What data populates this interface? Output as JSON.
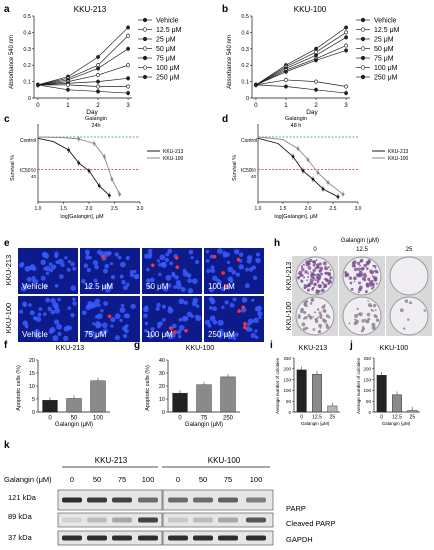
{
  "panels": {
    "a": {
      "letter": "a",
      "title": "KKU-213",
      "ylabel": "Absorbance 540 nm",
      "xlabel": "Day"
    },
    "b": {
      "letter": "b",
      "title": "KKU-100",
      "ylabel": "Absorbance 540 nm",
      "xlabel": "Day"
    },
    "c": {
      "letter": "c",
      "inner_title": "Galangin",
      "inner_sub": "24h",
      "ylabel": "Survival %",
      "xlabel": "log[Galangin], μM",
      "control": "Control",
      "ic50": "IC50",
      "legend": [
        "KKU-213",
        "KKU-100"
      ]
    },
    "d": {
      "letter": "d",
      "inner_title": "Galangin",
      "inner_sub": "48 h",
      "ylabel": "Survival %",
      "xlabel": "log[Galangin], μM",
      "control": "Control",
      "ic50": "IC50",
      "legend": [
        "KKU-213",
        "KKU-100"
      ]
    },
    "e": {
      "letter": "e",
      "row_labels": [
        "KKU-213",
        "KKU-100"
      ],
      "tiles": [
        [
          "Vehicle",
          "12.5 μM",
          "50 μM",
          "100 μM"
        ],
        [
          "Vehicle",
          "75 μM",
          "100 μM",
          "250 μM"
        ]
      ]
    },
    "h": {
      "letter": "h",
      "title": "Galangin (μM)",
      "cols": [
        "0",
        "12.5",
        "25"
      ],
      "row_labels": [
        "KKU-213",
        "KKU-100"
      ]
    },
    "f": {
      "letter": "f",
      "title": "KKU-213",
      "ylabel": "Apoptotic cells (%)",
      "xlabel": "Galangin (μM)"
    },
    "g": {
      "letter": "g",
      "title": "KKU-100",
      "ylabel": "Apoptotic cells (%)",
      "xlabel": "Galangin (μM)"
    },
    "i": {
      "letter": "i",
      "title": "KKU-213",
      "ylabel": "Average number of colonies",
      "xlabel": "Galangin (μM)"
    },
    "j": {
      "letter": "j",
      "title": "KKU-100",
      "ylabel": "Average number of colonies",
      "xlabel": "Galangin (μM)"
    },
    "k": {
      "letter": "k",
      "title_left": "KKU-213",
      "title_right": "KKU-100",
      "conc_label": "Galangin (μM)",
      "concs": [
        "0",
        "50",
        "75",
        "100"
      ],
      "mw": [
        "121 kDa",
        "89 kDa",
        "37 kDa"
      ],
      "bands": [
        "PARP",
        "Cleaved PARP",
        "GAPDH"
      ]
    }
  },
  "growth_legend": [
    "Vehicle",
    "12.5 μM",
    "25 μM",
    "50 μM",
    "75 μM",
    "100 μM",
    "250 μM"
  ],
  "colors": {
    "green": "#2a9d3a",
    "red": "#d62020",
    "dark": "#1a1a1a",
    "gray": "#888888",
    "bar_dark": "#222222",
    "bar_gray": "#8a8a8a",
    "bar_light": "#b5b5b5",
    "fluor_bg": "#0c1a8a",
    "cell_blue": "#3a5cff",
    "cell_red": "#ff3030"
  },
  "chart_data": [
    {
      "id": "a",
      "type": "line",
      "title": "KKU-213",
      "xlabel": "Day",
      "ylabel": "Absorbance 540 nm",
      "x": [
        0,
        1,
        2,
        3
      ],
      "ylim": [
        0,
        0.5
      ],
      "xticks": [
        0,
        1,
        2,
        3
      ],
      "yticks": [
        0,
        0.1,
        0.2,
        0.3,
        0.4,
        0.5
      ],
      "series": [
        {
          "name": "Vehicle",
          "values": [
            0.08,
            0.13,
            0.25,
            0.43
          ]
        },
        {
          "name": "12.5 μM",
          "values": [
            0.08,
            0.12,
            0.2,
            0.38
          ]
        },
        {
          "name": "25 μM",
          "values": [
            0.08,
            0.11,
            0.18,
            0.3
          ]
        },
        {
          "name": "50 μM",
          "values": [
            0.08,
            0.1,
            0.14,
            0.2
          ]
        },
        {
          "name": "75 μM",
          "values": [
            0.08,
            0.09,
            0.1,
            0.12
          ]
        },
        {
          "name": "100 μM",
          "values": [
            0.08,
            0.08,
            0.07,
            0.07
          ]
        },
        {
          "name": "250 μM",
          "values": [
            0.08,
            0.05,
            0.04,
            0.03
          ]
        }
      ]
    },
    {
      "id": "b",
      "type": "line",
      "title": "KKU-100",
      "xlabel": "Day",
      "ylabel": "Absorbance 540 nm",
      "x": [
        0,
        1,
        2,
        3
      ],
      "ylim": [
        0,
        0.5
      ],
      "xticks": [
        0,
        1,
        2,
        3
      ],
      "yticks": [
        0,
        0.1,
        0.2,
        0.3,
        0.4,
        0.5
      ],
      "series": [
        {
          "name": "Vehicle",
          "values": [
            0.08,
            0.2,
            0.3,
            0.43
          ]
        },
        {
          "name": "12.5 μM",
          "values": [
            0.08,
            0.19,
            0.28,
            0.4
          ]
        },
        {
          "name": "25 μM",
          "values": [
            0.08,
            0.18,
            0.26,
            0.37
          ]
        },
        {
          "name": "50 μM",
          "values": [
            0.08,
            0.17,
            0.24,
            0.32
          ]
        },
        {
          "name": "75 μM",
          "values": [
            0.08,
            0.16,
            0.23,
            0.29
          ]
        },
        {
          "name": "100 μM",
          "values": [
            0.08,
            0.11,
            0.1,
            0.07
          ]
        },
        {
          "name": "250 μM",
          "values": [
            0.08,
            0.07,
            0.05,
            0.03
          ]
        }
      ]
    },
    {
      "id": "c",
      "type": "line",
      "xlabel": "log[Galangin], μM",
      "ylabel": "Survival %",
      "xlim": [
        1.0,
        3.0
      ],
      "xticks": [
        1.0,
        1.5,
        2.0,
        2.5,
        3.0
      ],
      "ylim": [
        0,
        120
      ],
      "yticks": [
        40,
        50
      ],
      "series": [
        {
          "name": "KKU-213",
          "x": [
            1.0,
            1.3,
            1.6,
            1.8,
            2.0,
            2.2,
            2.4
          ],
          "values": [
            98,
            93,
            80,
            60,
            48,
            25,
            10
          ]
        },
        {
          "name": "KKU-100",
          "x": [
            1.0,
            1.5,
            1.8,
            2.1,
            2.3,
            2.45,
            2.6
          ],
          "values": [
            100,
            99,
            97,
            90,
            70,
            35,
            12
          ]
        }
      ]
    },
    {
      "id": "d",
      "type": "line",
      "xlabel": "log[Galangin], μM",
      "ylabel": "Survival %",
      "xlim": [
        1.0,
        3.0
      ],
      "xticks": [
        1.0,
        1.5,
        2.0,
        2.5,
        3.0
      ],
      "ylim": [
        0,
        120
      ],
      "yticks": [
        40,
        50
      ],
      "series": [
        {
          "name": "KKU-213",
          "x": [
            1.0,
            1.4,
            1.7,
            1.9,
            2.1,
            2.3,
            2.6
          ],
          "values": [
            98,
            90,
            70,
            48,
            35,
            20,
            8
          ]
        },
        {
          "name": "KKU-100",
          "x": [
            1.0,
            1.5,
            1.8,
            2.0,
            2.2,
            2.4,
            2.7
          ],
          "values": [
            100,
            96,
            82,
            65,
            45,
            30,
            12
          ]
        }
      ]
    },
    {
      "id": "f",
      "type": "bar",
      "title": "KKU-213",
      "categories": [
        "0",
        "50",
        "100"
      ],
      "values": [
        4.5,
        5.2,
        12.0
      ],
      "ylim": [
        0,
        20
      ],
      "yticks": [
        0,
        5,
        10,
        15,
        20
      ]
    },
    {
      "id": "g",
      "type": "bar",
      "title": "KKU-100",
      "categories": [
        "0",
        "75",
        "250"
      ],
      "values": [
        14.5,
        21.0,
        27.0
      ],
      "ylim": [
        0,
        40
      ],
      "yticks": [
        0,
        10,
        20,
        30,
        40
      ]
    },
    {
      "id": "i",
      "type": "bar",
      "title": "KKU-213",
      "categories": [
        "0",
        "12.5",
        "25"
      ],
      "values": [
        195,
        175,
        28
      ],
      "ylim": [
        0,
        250
      ],
      "yticks": [
        0,
        50,
        100,
        150,
        200,
        250
      ]
    },
    {
      "id": "j",
      "type": "bar",
      "title": "KKU-100",
      "categories": [
        "0",
        "12.5",
        "25"
      ],
      "values": [
        170,
        80,
        8
      ],
      "ylim": [
        0,
        250
      ],
      "yticks": [
        0,
        50,
        100,
        150,
        200,
        250
      ]
    }
  ]
}
